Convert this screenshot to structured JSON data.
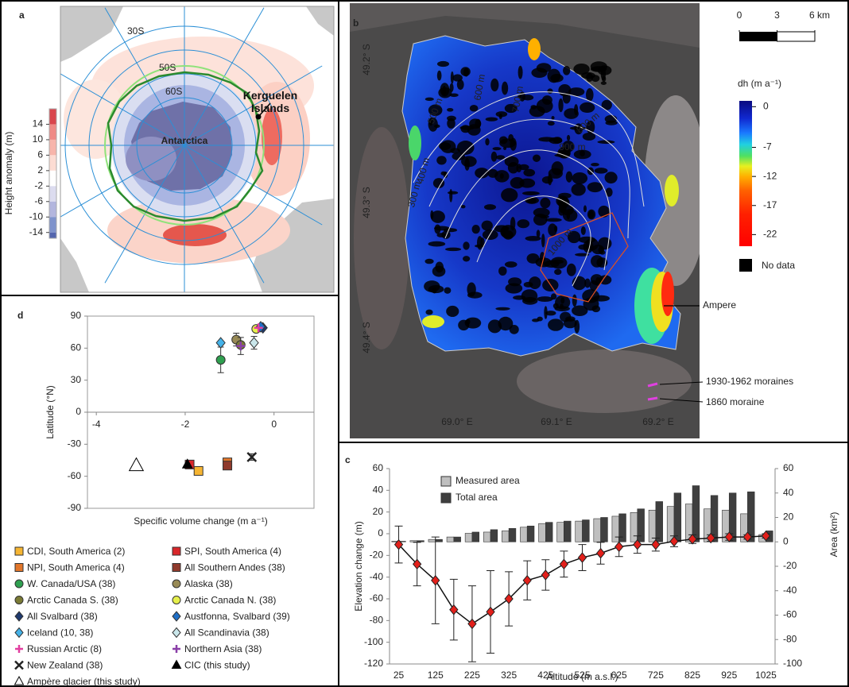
{
  "panels": {
    "a": {
      "label": "a",
      "grid_labels": [
        "30S",
        "50S",
        "60S"
      ],
      "island": "Kerguelen Islands",
      "continent": "Antarctica",
      "colorbar": {
        "title": "Height anomaly (m)",
        "lim": [
          18,
          -15.5
        ],
        "ticks": [
          14,
          10,
          6,
          2,
          -2,
          -6,
          -10,
          -14
        ],
        "colors": [
          "#d9464d",
          "#ef8a86",
          "#f7b5ab",
          "#fcdcd3",
          "#ffffff",
          "#dcdcef",
          "#b3b6de",
          "#7f93cc",
          "#5466ae"
        ]
      }
    },
    "b": {
      "label": "b",
      "scale": {
        "lim": [
          0,
          6
        ],
        "ticks": [
          0,
          3,
          {
            "value": 6,
            "label": "6 km"
          }
        ]
      },
      "colorbar": {
        "title": "dh (m a⁻¹)",
        "lim": [
          1,
          -24
        ],
        "ticks": [
          0,
          -7,
          -12,
          -17,
          -22
        ]
      },
      "no_data": "No data",
      "lat_labels": [
        "49.2° S",
        "49.3° S",
        "49.4° S"
      ],
      "lon_labels": [
        "69.0° E",
        "69.1° E",
        "69.2° E"
      ],
      "contour_labels": [
        "700 m",
        "600 m",
        "500 m",
        "400 m",
        "300 m",
        "800 m",
        "900 m",
        "1000 m"
      ],
      "glacier": "Ampere",
      "moraines_recent": "1930-1962 moraines",
      "moraine_old": "1860 moraine"
    }
  },
  "chart_data": [
    {
      "type": "combo",
      "label": "c",
      "legend": "upper left",
      "categories": [
        25,
        null,
        125,
        null,
        225,
        null,
        325,
        null,
        425,
        null,
        525,
        null,
        625,
        null,
        725,
        null,
        825,
        null,
        925,
        null,
        1025
      ],
      "series": [
        {
          "name": "Measured area",
          "kind": "bar",
          "axis": "y2",
          "color": "#bfbfbf",
          "values": [
            0.5,
            1,
            2,
            4,
            7,
            8,
            9,
            12,
            15,
            16,
            17,
            19,
            21,
            24,
            26,
            29,
            31,
            27,
            26,
            23,
            6
          ]
        },
        {
          "name": "Total area",
          "kind": "bar",
          "axis": "y2",
          "color": "#3f3f3f",
          "values": [
            0.5,
            1,
            2,
            4,
            8,
            10,
            11,
            13,
            16,
            17,
            18,
            20,
            23,
            27,
            33,
            40,
            46,
            38,
            40,
            41,
            9
          ]
        },
        {
          "kind": "line",
          "color": "#e3201b",
          "values": [
            -10,
            -28,
            -43,
            -70,
            -83,
            -72,
            -60,
            -43,
            -38,
            -28,
            -22,
            -18,
            -12,
            -10,
            -10,
            -7,
            -5,
            -4,
            -3,
            -3,
            -2
          ],
          "errors": [
            17,
            20,
            40,
            28,
            35,
            38,
            25,
            18,
            14,
            12,
            12,
            10,
            9,
            8,
            6,
            5,
            4,
            3,
            3,
            2,
            2
          ]
        }
      ],
      "ylim": [
        -120,
        60
      ],
      "yticks": [
        60,
        40,
        20,
        0,
        -20,
        -40,
        -60,
        -80,
        -100,
        -120
      ],
      "y2lim": [
        -100,
        60
      ],
      "y2ticks": [
        60,
        40,
        20,
        0,
        -20,
        -40,
        -60,
        -80,
        -100
      ],
      "ylabel": "Elevation change (m)",
      "y2label": "Area (km²)",
      "xlabel": "Altitude (m a.s.l.)"
    },
    {
      "type": "scatter",
      "label": "d",
      "xlim": [
        -4.2,
        0.9
      ],
      "xticks": [
        -4,
        -2,
        0
      ],
      "ylim": [
        -90,
        90
      ],
      "yticks": [
        90,
        60,
        30,
        0,
        -30,
        -60,
        -90
      ],
      "xlabel": "Specific volume change (m a⁻¹)",
      "ylabel": "Latitude (°N)",
      "series": [
        {
          "name": "CDI, South America  (2)",
          "marker": "square",
          "color": "#f6b532",
          "x": [
            -1.7
          ],
          "y": [
            -55
          ]
        },
        {
          "name": "SPI, South America (4)",
          "marker": "square",
          "color": "#d9262a",
          "x": [
            -1.9
          ],
          "y": [
            -49
          ]
        },
        {
          "name": "NPI, South America  (4)",
          "marker": "square",
          "color": "#e2762a",
          "x": [
            -1.05
          ],
          "y": [
            -47
          ]
        },
        {
          "name": "All Southern Andes (38)",
          "marker": "square",
          "color": "#8f3a2c",
          "x": [
            -1.05
          ],
          "y": [
            -50
          ]
        },
        {
          "name": "W. Canada/USA (38)",
          "marker": "circle",
          "color": "#2fa050",
          "x": [
            -1.2
          ],
          "y": [
            49
          ],
          "yerr": [
            12
          ]
        },
        {
          "name": "Alaska (38)",
          "marker": "circle",
          "color": "#988a55",
          "x": [
            -0.85
          ],
          "y": [
            68
          ],
          "yerr": [
            6
          ]
        },
        {
          "name": "Arctic Canada S. (38)",
          "marker": "circle",
          "color": "#7b7b35",
          "x": [
            -0.75
          ],
          "y": [
            63
          ]
        },
        {
          "name": "Arctic Canada N. (38)",
          "marker": "circle",
          "color": "#e6f04c",
          "x": [
            -0.4
          ],
          "y": [
            78
          ]
        },
        {
          "name": "All Svalbard (38)",
          "marker": "diamond",
          "color": "#1f3a6e",
          "x": [
            -0.25
          ],
          "y": [
            79
          ]
        },
        {
          "name": "Austfonna, Svalbard (39)",
          "marker": "diamond",
          "color": "#1f6fc6",
          "x": [
            -0.3
          ],
          "y": [
            80
          ]
        },
        {
          "name": "Iceland (10, 38)",
          "marker": "diamond",
          "color": "#45b2e8",
          "x": [
            -1.2
          ],
          "y": [
            65
          ]
        },
        {
          "name": "All Scandinavia (38)",
          "marker": "diamond",
          "color": "#c9e6ea",
          "x": [
            -0.45
          ],
          "y": [
            65
          ],
          "yerr": [
            6
          ]
        },
        {
          "name": "Russian Arctic (8)",
          "marker": "plus",
          "color": "#e23fa0",
          "x": [
            -0.35
          ],
          "y": [
            79
          ]
        },
        {
          "name": "Northern Asia (38)",
          "marker": "plus",
          "color": "#8a3fa8",
          "x": [
            -0.75
          ],
          "y": [
            62
          ],
          "yerr": [
            8
          ]
        },
        {
          "name": "New Zealand (38)",
          "marker": "cross",
          "color": "#222222",
          "x": [
            -0.5
          ],
          "y": [
            -42
          ],
          "yerr": [
            3
          ]
        },
        {
          "name": "CIC (this study)",
          "marker": "triangle",
          "color": "#000000",
          "x": [
            -1.95
          ],
          "y": [
            -49
          ]
        },
        {
          "name": "Ampère glacier (this study)",
          "marker": "triangle",
          "color": "#ffffff",
          "x": [
            -3.1
          ],
          "y": [
            -50
          ]
        }
      ]
    }
  ]
}
